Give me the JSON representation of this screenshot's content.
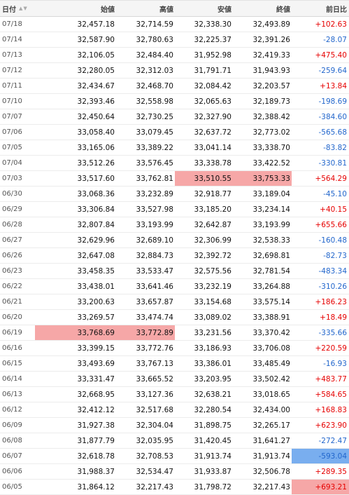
{
  "header": {
    "date": "日付",
    "open": "始値",
    "high": "高値",
    "low": "安値",
    "close": "終値",
    "change": "前日比"
  },
  "colors": {
    "up": "#e60000",
    "down": "#2266cc",
    "highlight_red": "#f6a7a7",
    "highlight_blue": "#79aeef"
  },
  "rows": [
    {
      "date": "07/18",
      "open": "32,457.18",
      "high": "32,714.59",
      "low": "32,338.30",
      "close": "32,493.89",
      "change": "+102.63",
      "dir": "up",
      "hl": []
    },
    {
      "date": "07/14",
      "open": "32,587.90",
      "high": "32,780.63",
      "low": "32,225.37",
      "close": "32,391.26",
      "change": "-28.07",
      "dir": "down",
      "hl": []
    },
    {
      "date": "07/13",
      "open": "32,106.05",
      "high": "32,484.40",
      "low": "31,952.98",
      "close": "32,419.33",
      "change": "+475.40",
      "dir": "up",
      "hl": []
    },
    {
      "date": "07/12",
      "open": "32,280.05",
      "high": "32,312.03",
      "low": "31,791.71",
      "close": "31,943.93",
      "change": "-259.64",
      "dir": "down",
      "hl": []
    },
    {
      "date": "07/11",
      "open": "32,434.67",
      "high": "32,468.70",
      "low": "32,084.42",
      "close": "32,203.57",
      "change": "+13.84",
      "dir": "up",
      "hl": []
    },
    {
      "date": "07/10",
      "open": "32,393.46",
      "high": "32,558.98",
      "low": "32,065.63",
      "close": "32,189.73",
      "change": "-198.69",
      "dir": "down",
      "hl": []
    },
    {
      "date": "07/07",
      "open": "32,450.64",
      "high": "32,730.25",
      "low": "32,327.90",
      "close": "32,388.42",
      "change": "-384.60",
      "dir": "down",
      "hl": []
    },
    {
      "date": "07/06",
      "open": "33,058.40",
      "high": "33,079.45",
      "low": "32,637.72",
      "close": "32,773.02",
      "change": "-565.68",
      "dir": "down",
      "hl": []
    },
    {
      "date": "07/05",
      "open": "33,165.06",
      "high": "33,389.22",
      "low": "33,041.14",
      "close": "33,338.70",
      "change": "-83.82",
      "dir": "down",
      "hl": []
    },
    {
      "date": "07/04",
      "open": "33,512.26",
      "high": "33,576.45",
      "low": "33,338.78",
      "close": "33,422.52",
      "change": "-330.81",
      "dir": "down",
      "hl": []
    },
    {
      "date": "07/03",
      "open": "33,517.60",
      "high": "33,762.81",
      "low": "33,510.55",
      "close": "33,753.33",
      "change": "+564.29",
      "dir": "up",
      "hl": [
        "low",
        "close"
      ]
    },
    {
      "date": "06/30",
      "open": "33,068.36",
      "high": "33,232.89",
      "low": "32,918.77",
      "close": "33,189.04",
      "change": "-45.10",
      "dir": "down",
      "hl": []
    },
    {
      "date": "06/29",
      "open": "33,306.84",
      "high": "33,527.98",
      "low": "33,185.20",
      "close": "33,234.14",
      "change": "+40.15",
      "dir": "up",
      "hl": []
    },
    {
      "date": "06/28",
      "open": "32,807.84",
      "high": "33,193.99",
      "low": "32,642.87",
      "close": "33,193.99",
      "change": "+655.66",
      "dir": "up",
      "hl": []
    },
    {
      "date": "06/27",
      "open": "32,629.96",
      "high": "32,689.10",
      "low": "32,306.99",
      "close": "32,538.33",
      "change": "-160.48",
      "dir": "down",
      "hl": []
    },
    {
      "date": "06/26",
      "open": "32,647.08",
      "high": "32,884.73",
      "low": "32,392.72",
      "close": "32,698.81",
      "change": "-82.73",
      "dir": "down",
      "hl": []
    },
    {
      "date": "06/23",
      "open": "33,458.35",
      "high": "33,533.47",
      "low": "32,575.56",
      "close": "32,781.54",
      "change": "-483.34",
      "dir": "down",
      "hl": []
    },
    {
      "date": "06/22",
      "open": "33,438.01",
      "high": "33,641.46",
      "low": "33,232.19",
      "close": "33,264.88",
      "change": "-310.26",
      "dir": "down",
      "hl": []
    },
    {
      "date": "06/21",
      "open": "33,200.63",
      "high": "33,657.87",
      "low": "33,154.68",
      "close": "33,575.14",
      "change": "+186.23",
      "dir": "up",
      "hl": []
    },
    {
      "date": "06/20",
      "open": "33,269.57",
      "high": "33,474.74",
      "low": "33,089.02",
      "close": "33,388.91",
      "change": "+18.49",
      "dir": "up",
      "hl": []
    },
    {
      "date": "06/19",
      "open": "33,768.69",
      "high": "33,772.89",
      "low": "33,231.56",
      "close": "33,370.42",
      "change": "-335.66",
      "dir": "down",
      "hl": [
        "open",
        "high"
      ]
    },
    {
      "date": "06/16",
      "open": "33,399.15",
      "high": "33,772.76",
      "low": "33,186.93",
      "close": "33,706.08",
      "change": "+220.59",
      "dir": "up",
      "hl": []
    },
    {
      "date": "06/15",
      "open": "33,493.69",
      "high": "33,767.13",
      "low": "33,386.01",
      "close": "33,485.49",
      "change": "-16.93",
      "dir": "down",
      "hl": []
    },
    {
      "date": "06/14",
      "open": "33,331.47",
      "high": "33,665.52",
      "low": "33,203.95",
      "close": "33,502.42",
      "change": "+483.77",
      "dir": "up",
      "hl": []
    },
    {
      "date": "06/13",
      "open": "32,668.95",
      "high": "33,127.36",
      "low": "32,638.21",
      "close": "33,018.65",
      "change": "+584.65",
      "dir": "up",
      "hl": []
    },
    {
      "date": "06/12",
      "open": "32,412.12",
      "high": "32,517.68",
      "low": "32,280.54",
      "close": "32,434.00",
      "change": "+168.83",
      "dir": "up",
      "hl": []
    },
    {
      "date": "06/09",
      "open": "31,927.38",
      "high": "32,304.04",
      "low": "31,898.75",
      "close": "32,265.17",
      "change": "+623.90",
      "dir": "up",
      "hl": []
    },
    {
      "date": "06/08",
      "open": "31,877.79",
      "high": "32,035.95",
      "low": "31,420.45",
      "close": "31,641.27",
      "change": "-272.47",
      "dir": "down",
      "hl": []
    },
    {
      "date": "06/07",
      "open": "32,618.78",
      "high": "32,708.53",
      "low": "31,913.74",
      "close": "31,913.74",
      "change": "-593.04",
      "dir": "down",
      "hl": [
        "change_blue"
      ]
    },
    {
      "date": "06/06",
      "open": "31,988.37",
      "high": "32,534.47",
      "low": "31,933.87",
      "close": "32,506.78",
      "change": "+289.35",
      "dir": "up",
      "hl": []
    },
    {
      "date": "06/05",
      "open": "31,864.12",
      "high": "32,217.43",
      "low": "31,798.72",
      "close": "32,217.43",
      "change": "+693.21",
      "dir": "up",
      "hl": [
        "change_red"
      ]
    }
  ]
}
